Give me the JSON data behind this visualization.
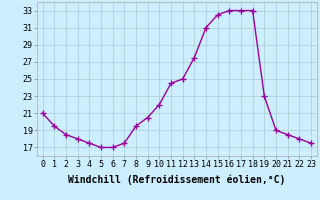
{
  "hours": [
    0,
    1,
    2,
    3,
    4,
    5,
    6,
    7,
    8,
    9,
    10,
    11,
    12,
    13,
    14,
    15,
    16,
    17,
    18,
    19,
    20,
    21,
    22,
    23
  ],
  "values": [
    21,
    19.5,
    18.5,
    18,
    17.5,
    17,
    17,
    17.5,
    19.5,
    20.5,
    22,
    24.5,
    25,
    27.5,
    31,
    32.5,
    33,
    33,
    33,
    23,
    19,
    18.5,
    18,
    17.5
  ],
  "line_color": "#990099",
  "marker": "+",
  "marker_size": 4,
  "marker_lw": 1.0,
  "bg_color": "#cceeff",
  "grid_color": "#aacccc",
  "xlim": [
    -0.5,
    23.5
  ],
  "ylim": [
    16.0,
    34.0
  ],
  "yticks": [
    17,
    19,
    21,
    23,
    25,
    27,
    29,
    31,
    33
  ],
  "xtick_labels": [
    "0",
    "1",
    "2",
    "3",
    "4",
    "5",
    "6",
    "7",
    "8",
    "9",
    "10",
    "11",
    "12",
    "13",
    "14",
    "15",
    "16",
    "17",
    "18",
    "19",
    "20",
    "21",
    "22",
    "23"
  ],
  "xlabel": "Windchill (Refroidissement éolien,°C)",
  "xlabel_fontsize": 7,
  "tick_fontsize": 6,
  "line_width": 1.0
}
